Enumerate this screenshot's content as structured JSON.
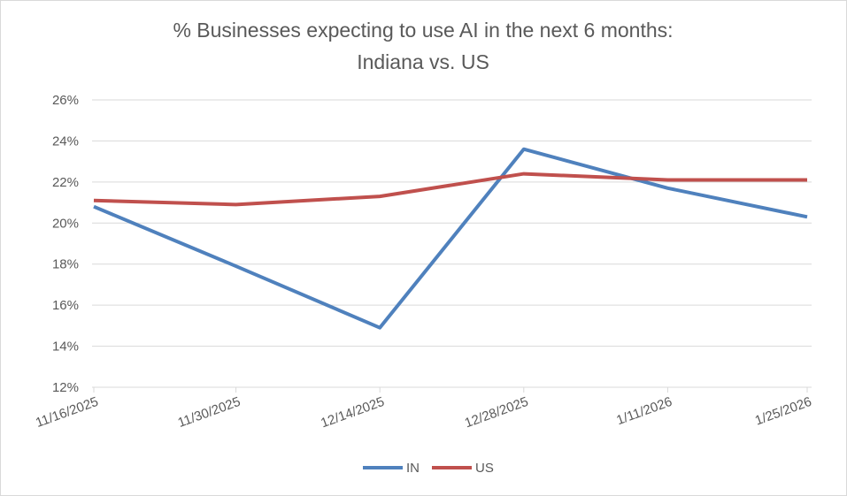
{
  "chart_data": {
    "type": "line",
    "title_lines": [
      "% Businesses expecting to use AI in the next 6 months:",
      "Indiana vs. US"
    ],
    "categories": [
      "11/16/2025",
      "11/30/2025",
      "12/14/2025",
      "12/28/2025",
      "1/11/2026",
      "1/25/2026"
    ],
    "series": [
      {
        "name": "IN",
        "color": "#4f81bd",
        "values": [
          20.8,
          17.9,
          14.9,
          23.6,
          21.7,
          20.3
        ]
      },
      {
        "name": "US",
        "color": "#c0504d",
        "values": [
          21.1,
          20.9,
          21.3,
          22.4,
          22.1,
          22.1
        ]
      }
    ],
    "ylim": [
      12,
      26
    ],
    "yticks": [
      12,
      14,
      16,
      18,
      20,
      22,
      24,
      26
    ],
    "ytick_labels": [
      "12%",
      "14%",
      "16%",
      "18%",
      "20%",
      "22%",
      "24%",
      "26%"
    ],
    "grid": true,
    "legend_position": "bottom"
  }
}
